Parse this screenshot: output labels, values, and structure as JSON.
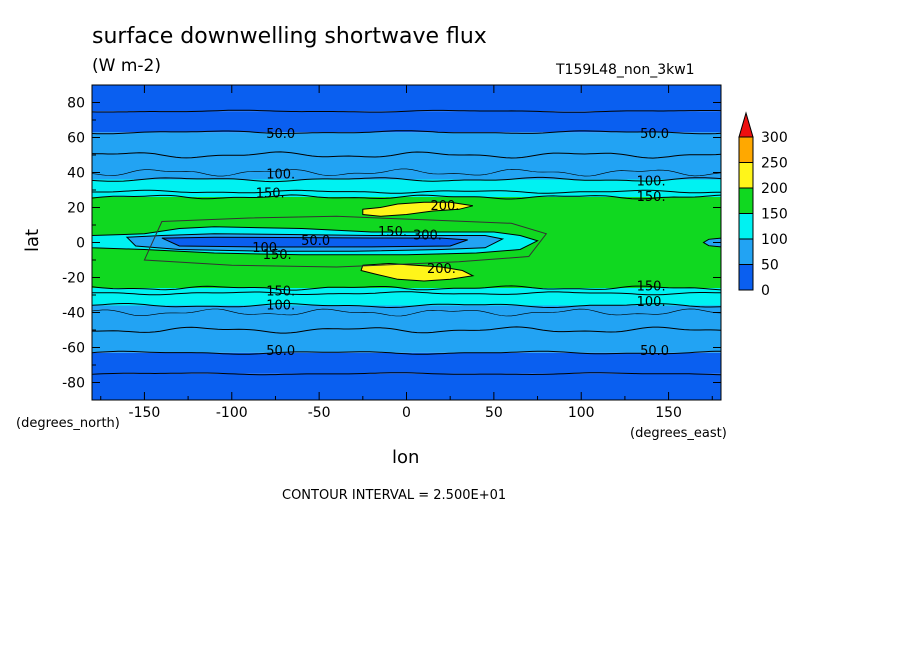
{
  "chart_data": {
    "type": "heatmap",
    "subtype": "filled-contour",
    "title": "surface downwelling shortwave flux",
    "units": "(W m-2)",
    "run_label": "T159L48_non_3kw1",
    "xlabel": "lon",
    "ylabel": "lat",
    "x_units": "(degrees_east)",
    "y_units": "(degrees_north)",
    "xlim": [
      -180,
      180
    ],
    "ylim": [
      -90,
      90
    ],
    "x_ticks": [
      -150,
      -100,
      -50,
      0,
      50,
      100,
      150
    ],
    "y_ticks": [
      -80,
      -60,
      -40,
      -20,
      0,
      20,
      40,
      60,
      80
    ],
    "x_tick_labels": [
      "-150",
      "-100",
      "-50",
      "0",
      "50",
      "100",
      "150"
    ],
    "y_tick_labels": [
      "-80",
      "-60",
      "-40",
      "-20",
      "0",
      "20",
      "40",
      "60",
      "80"
    ],
    "contour_interval_text": "CONTOUR INTERVAL = 2.500E+01",
    "colorbar": {
      "levels": [
        0,
        50,
        100,
        150,
        200,
        250,
        300
      ],
      "labels": [
        "0",
        "50",
        "100",
        "150",
        "200",
        "250",
        "300"
      ],
      "colors": [
        "#0a5ff0",
        "#22a3f3",
        "#00f2f2",
        "#10d820",
        "#fff51a",
        "#ffa800",
        "#ee1010"
      ],
      "extend": "max"
    },
    "zonal_bands": [
      {
        "lat_range": [
          -90,
          -75
        ],
        "value_range": [
          0,
          50
        ],
        "color": "#0a5ff0"
      },
      {
        "lat_range": [
          -75,
          -63
        ],
        "value_range": [
          0,
          50
        ],
        "color": "#0a5ff0"
      },
      {
        "lat_range": [
          -63,
          -36
        ],
        "value_range": [
          50,
          100
        ],
        "color": "#22a3f3"
      },
      {
        "lat_range": [
          -36,
          -26
        ],
        "value_range": [
          100,
          150
        ],
        "color": "#00f2f2"
      },
      {
        "lat_range": [
          -26,
          26
        ],
        "value_range": [
          150,
          200
        ],
        "color": "#10d820"
      },
      {
        "lat_range": [
          26,
          36
        ],
        "value_range": [
          100,
          150
        ],
        "color": "#00f2f2"
      },
      {
        "lat_range": [
          36,
          63
        ],
        "value_range": [
          50,
          100
        ],
        "color": "#22a3f3"
      },
      {
        "lat_range": [
          63,
          75
        ],
        "value_range": [
          0,
          50
        ],
        "color": "#0a5ff0"
      },
      {
        "lat_range": [
          75,
          90
        ],
        "value_range": [
          0,
          50
        ],
        "color": "#0a5ff0"
      }
    ],
    "features": [
      {
        "name": "equatorial-minimum",
        "lon_range": [
          -140,
          65
        ],
        "lat_range": [
          -6,
          6
        ],
        "value_range": [
          0,
          100
        ]
      },
      {
        "name": "northern-maximum",
        "lon_range": [
          -25,
          40
        ],
        "lat_range": [
          14,
          24
        ],
        "value_range": [
          200,
          250
        ]
      },
      {
        "name": "southern-maximum",
        "lon_range": [
          -25,
          40
        ],
        "lat_range": [
          -22,
          -10
        ],
        "value_range": [
          200,
          250
        ]
      },
      {
        "name": "east-equatorial-minimum",
        "lon_range": [
          170,
          180
        ],
        "lat_range": [
          -2,
          2
        ],
        "value_range": [
          50,
          150
        ]
      }
    ],
    "contour_labels": [
      {
        "text": "50.0",
        "lon": -72,
        "lat": 62
      },
      {
        "text": "50.0",
        "lon": 142,
        "lat": 62
      },
      {
        "text": "100.",
        "lon": -72,
        "lat": 39
      },
      {
        "text": "100.",
        "lon": 140,
        "lat": 35
      },
      {
        "text": "150.",
        "lon": -78,
        "lat": 28
      },
      {
        "text": "150.",
        "lon": 140,
        "lat": 26
      },
      {
        "text": "200.",
        "lon": 22,
        "lat": 21
      },
      {
        "text": "150.",
        "lon": -8,
        "lat": 6
      },
      {
        "text": "300.",
        "lon": 12,
        "lat": 4
      },
      {
        "text": "50.0",
        "lon": -52,
        "lat": 1
      },
      {
        "text": "100.",
        "lon": -80,
        "lat": -3
      },
      {
        "text": "150.",
        "lon": -74,
        "lat": -7
      },
      {
        "text": "200.",
        "lon": 20,
        "lat": -15
      },
      {
        "text": "150.",
        "lon": -72,
        "lat": -28
      },
      {
        "text": "150.",
        "lon": 140,
        "lat": -25
      },
      {
        "text": "100.",
        "lon": -72,
        "lat": -36
      },
      {
        "text": "100.",
        "lon": 140,
        "lat": -34
      },
      {
        "text": "50.0",
        "lon": -72,
        "lat": -62
      },
      {
        "text": "50.0",
        "lon": 142,
        "lat": -62
      }
    ]
  }
}
